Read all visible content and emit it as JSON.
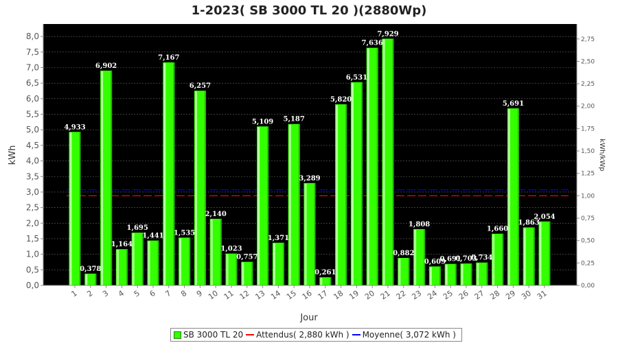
{
  "chart_data": {
    "type": "bar",
    "title": "1-2023( SB 3000 TL 20 )(2880Wp)",
    "xlabel": "Jour",
    "ylabel": "kWh",
    "y2label": "kWh/kWp",
    "ylim": [
      0,
      8.4
    ],
    "yticks": [
      "0,0",
      "0,5",
      "1,0",
      "1,5",
      "2,0",
      "2,5",
      "3,0",
      "3,5",
      "4,0",
      "4,5",
      "5,0",
      "5,5",
      "6,0",
      "6,5",
      "7,0",
      "7,5",
      "8,0"
    ],
    "y2lim": [
      0,
      2.9167
    ],
    "y2ticks": [
      "0,00",
      "0,25",
      "0,50",
      "0,75",
      "1,00",
      "1,25",
      "1,50",
      "1,75",
      "2,00",
      "2,25",
      "2,50",
      "2,75"
    ],
    "categories": [
      "1",
      "2",
      "3",
      "4",
      "5",
      "6",
      "7",
      "8",
      "9",
      "10",
      "11",
      "12",
      "13",
      "14",
      "15",
      "16",
      "17",
      "18",
      "19",
      "20",
      "21",
      "22",
      "23",
      "24",
      "25",
      "26",
      "27",
      "28",
      "29",
      "30",
      "31"
    ],
    "values": [
      4.933,
      0.378,
      6.902,
      1.164,
      1.695,
      1.441,
      7.167,
      1.535,
      6.257,
      2.14,
      1.023,
      0.757,
      5.109,
      1.371,
      5.187,
      3.289,
      0.261,
      5.82,
      6.531,
      7.636,
      7.929,
      0.882,
      1.808,
      0.609,
      0.691,
      0.703,
      0.734,
      1.66,
      5.691,
      1.863,
      2.054
    ],
    "value_labels": [
      "4,933",
      "0,378",
      "6,902",
      "1,164",
      "1,695",
      "1,441",
      "7,167",
      "1,535",
      "6,257",
      "2,140",
      "1,023",
      "0,757",
      "5,109",
      "1,371",
      "5,187",
      "3,289",
      "0,261",
      "5,820",
      "6,531",
      "7,636",
      "7,929",
      "0,882",
      "1,808",
      "0,609",
      "0,691",
      "0,703",
      "0,734",
      "1,660",
      "5,691",
      "1,863",
      "2,054"
    ],
    "reference_lines": [
      {
        "name": "Attendus( 2,880 kWh )",
        "value": 2.88,
        "color": "#ff0000"
      },
      {
        "name": "Moyenne( 3,072 kWh )",
        "value": 3.072,
        "color": "#0000ff"
      }
    ],
    "series_name": "SB 3000 TL 20",
    "bar_color": "#33ff00",
    "plot_background": "#000000",
    "grid": true,
    "legend_position": "bottom"
  }
}
